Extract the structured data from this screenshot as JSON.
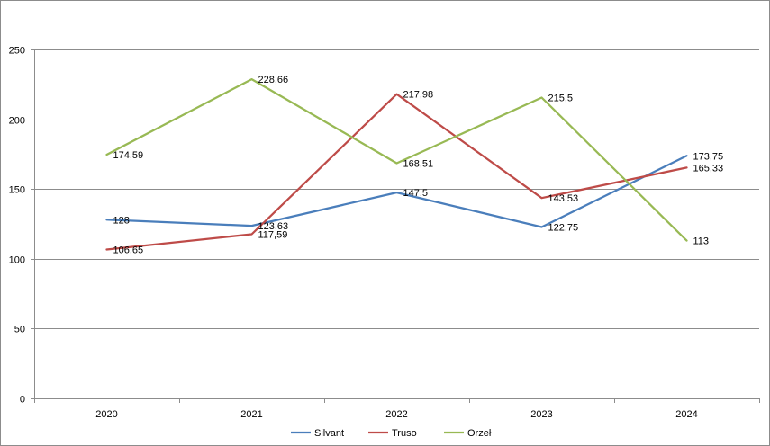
{
  "chart_data": {
    "type": "line",
    "categories": [
      "2020",
      "2021",
      "2022",
      "2023",
      "2024"
    ],
    "series": [
      {
        "name": "Silvant",
        "color": "#4a7ebb",
        "values": [
          128,
          123.63,
          147.5,
          122.75,
          173.75
        ],
        "labels": [
          "128",
          "123,63",
          "147,5",
          "122,75",
          "173,75"
        ]
      },
      {
        "name": "Truso",
        "color": "#be4b48",
        "values": [
          106.65,
          117.59,
          217.98,
          143.53,
          165.33
        ],
        "labels": [
          "106,65",
          "117,59",
          "217,98",
          "143,53",
          "165,33"
        ]
      },
      {
        "name": "Orzeł",
        "color": "#98b954",
        "values": [
          174.59,
          228.66,
          168.51,
          215.5,
          113
        ],
        "labels": [
          "174,59",
          "228,66",
          "168,51",
          "215,5",
          "113"
        ]
      }
    ],
    "y_ticks": [
      "0",
      "50",
      "100",
      "150",
      "200",
      "250"
    ],
    "ylim": [
      0,
      250
    ],
    "title": "",
    "xlabel": "",
    "ylabel": "",
    "grid": true,
    "legend_position": "bottom"
  }
}
